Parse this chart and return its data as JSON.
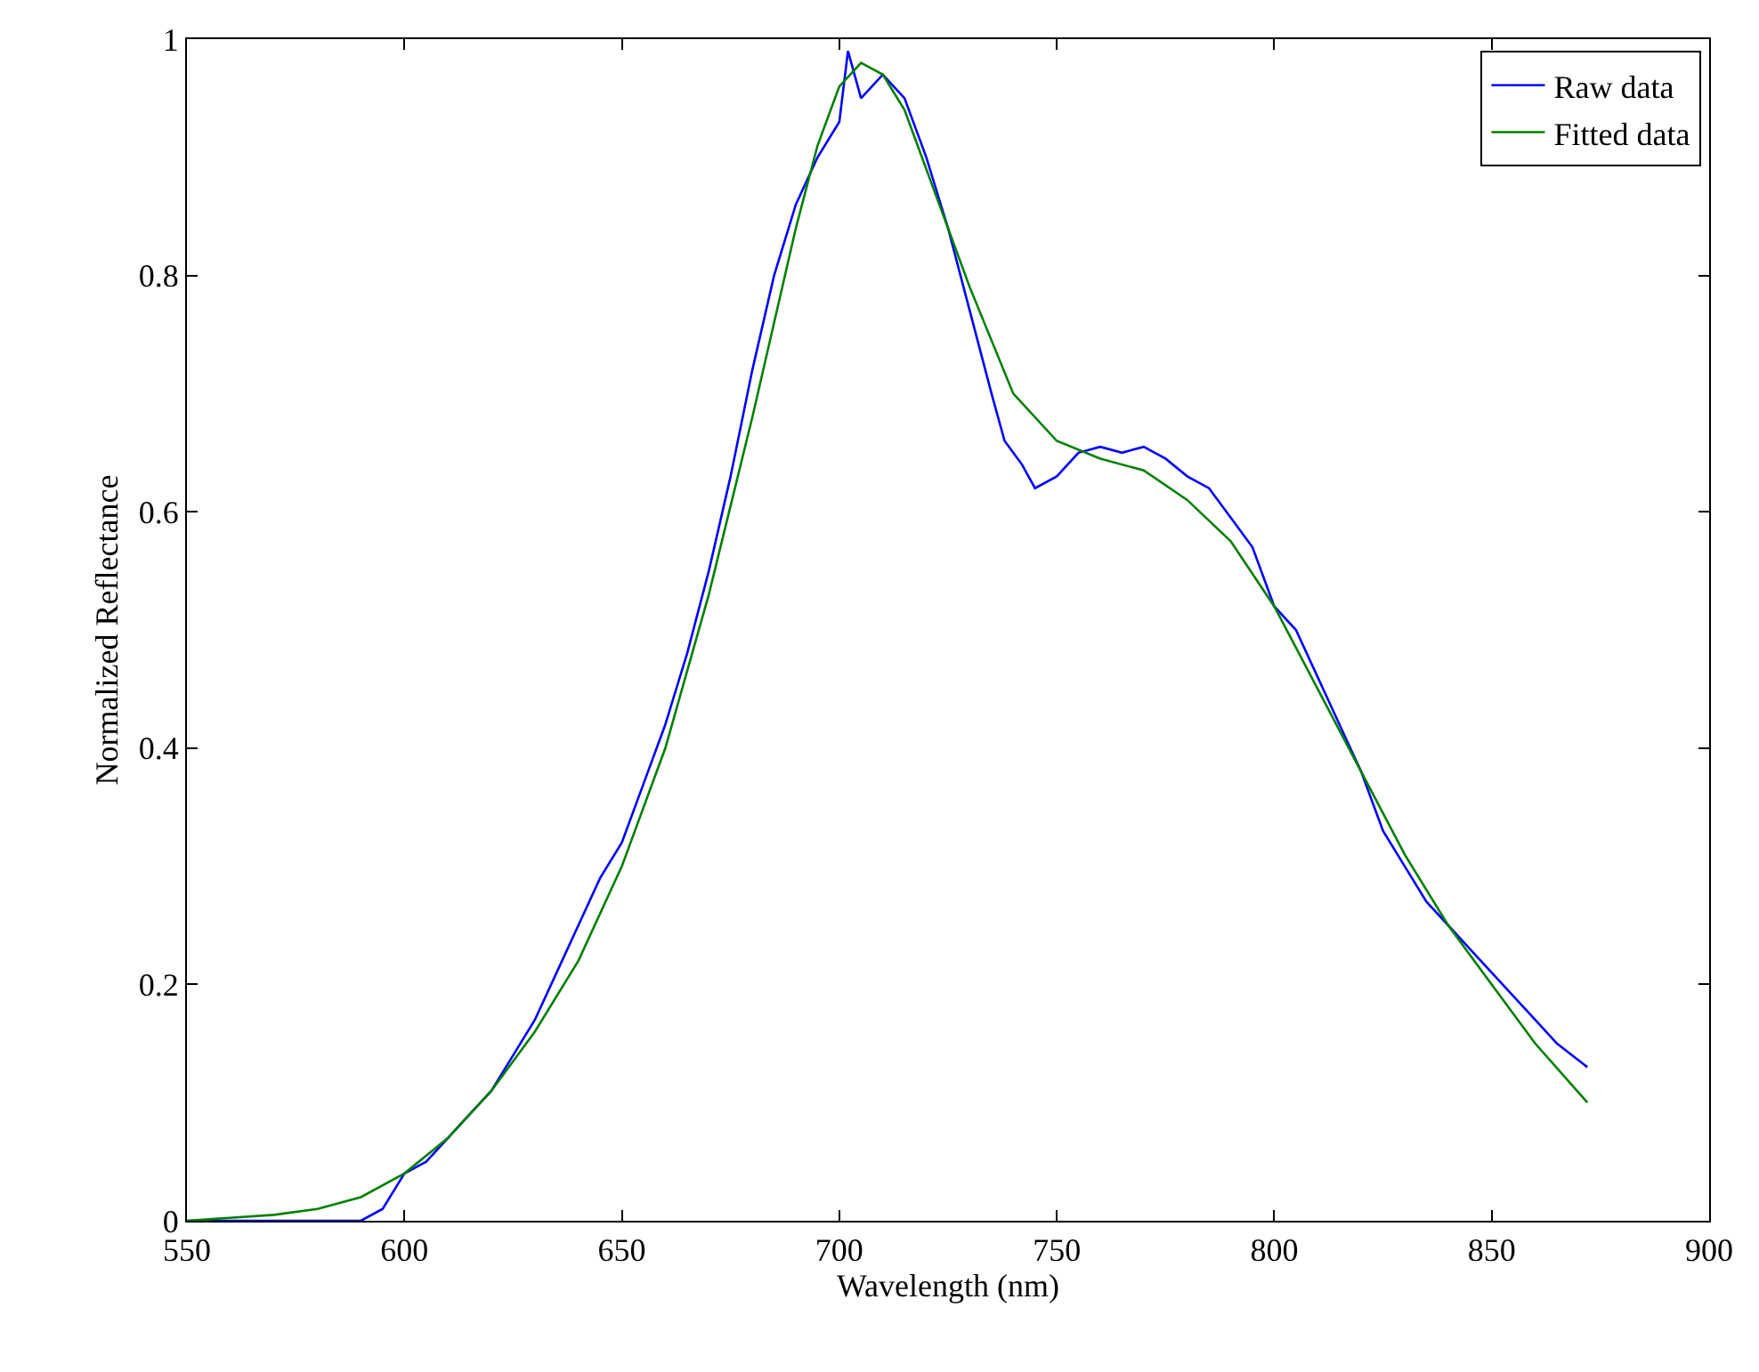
{
  "chart_data": {
    "type": "line",
    "xlabel": "Wavelength (nm)",
    "ylabel": "Normalized Reflectance",
    "xlim": [
      550,
      900
    ],
    "ylim": [
      0,
      1
    ],
    "xticks": [
      550,
      600,
      650,
      700,
      750,
      800,
      850,
      900
    ],
    "yticks": [
      0,
      0.2,
      0.4,
      0.6,
      0.8,
      1
    ],
    "legend": "top right",
    "marker": "none",
    "line_style": "solid",
    "series": [
      {
        "name": "Raw data",
        "color": "#0000ff",
        "x": [
          550,
          560,
          570,
          580,
          590,
          595,
          600,
          605,
          610,
          615,
          620,
          625,
          630,
          635,
          640,
          645,
          650,
          655,
          660,
          665,
          670,
          675,
          680,
          685,
          690,
          695,
          700,
          702,
          705,
          710,
          715,
          720,
          725,
          730,
          735,
          738,
          742,
          745,
          750,
          755,
          760,
          765,
          770,
          775,
          780,
          785,
          790,
          795,
          800,
          805,
          810,
          815,
          820,
          825,
          830,
          835,
          840,
          845,
          850,
          855,
          860,
          865,
          872
        ],
        "values": [
          0.0,
          0.0,
          0.0,
          0.0,
          0.0,
          0.01,
          0.04,
          0.05,
          0.07,
          0.09,
          0.11,
          0.14,
          0.17,
          0.21,
          0.25,
          0.29,
          0.32,
          0.37,
          0.42,
          0.48,
          0.55,
          0.63,
          0.72,
          0.8,
          0.86,
          0.9,
          0.93,
          0.99,
          0.95,
          0.97,
          0.95,
          0.9,
          0.84,
          0.77,
          0.7,
          0.66,
          0.64,
          0.62,
          0.63,
          0.65,
          0.655,
          0.65,
          0.655,
          0.645,
          0.63,
          0.62,
          0.595,
          0.57,
          0.52,
          0.5,
          0.46,
          0.42,
          0.38,
          0.33,
          0.3,
          0.27,
          0.25,
          0.23,
          0.21,
          0.19,
          0.17,
          0.15,
          0.13
        ]
      },
      {
        "name": "Fitted data",
        "color": "#008000",
        "x": [
          550,
          570,
          580,
          590,
          600,
          610,
          620,
          630,
          640,
          650,
          660,
          670,
          680,
          690,
          695,
          700,
          705,
          710,
          715,
          720,
          730,
          740,
          750,
          760,
          770,
          780,
          790,
          800,
          810,
          820,
          830,
          840,
          850,
          860,
          872
        ],
        "values": [
          0.0,
          0.005,
          0.01,
          0.02,
          0.04,
          0.07,
          0.11,
          0.16,
          0.22,
          0.3,
          0.4,
          0.53,
          0.68,
          0.84,
          0.91,
          0.96,
          0.98,
          0.97,
          0.94,
          0.89,
          0.79,
          0.7,
          0.66,
          0.645,
          0.635,
          0.61,
          0.575,
          0.52,
          0.45,
          0.38,
          0.31,
          0.25,
          0.2,
          0.15,
          0.1
        ]
      }
    ]
  }
}
